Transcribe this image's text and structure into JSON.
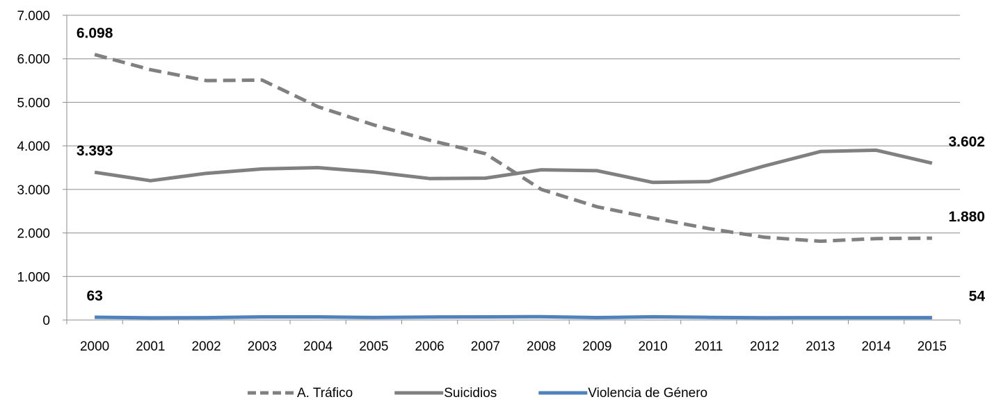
{
  "chart_data": {
    "type": "line",
    "categories": [
      "2000",
      "2001",
      "2002",
      "2003",
      "2004",
      "2005",
      "2006",
      "2007",
      "2008",
      "2009",
      "2010",
      "2011",
      "2012",
      "2013",
      "2014",
      "2015"
    ],
    "y_ticks": [
      "0",
      "1.000",
      "2.000",
      "3.000",
      "4.000",
      "5.000",
      "6.000",
      "7.000"
    ],
    "ylim": [
      0,
      7000
    ],
    "grid": true,
    "legend_position": "bottom",
    "series": [
      {
        "name": "A. Tráfico",
        "style": "dashed",
        "color": "#808080",
        "values": [
          6098,
          5750,
          5500,
          5510,
          4900,
          4480,
          4130,
          3820,
          3000,
          2600,
          2340,
          2100,
          1900,
          1810,
          1870,
          1880
        ]
      },
      {
        "name": "Suicidios",
        "style": "solid",
        "color": "#808080",
        "values": [
          3393,
          3200,
          3370,
          3470,
          3500,
          3400,
          3250,
          3260,
          3450,
          3430,
          3160,
          3180,
          3540,
          3870,
          3900,
          3602
        ]
      },
      {
        "name": "Violencia de Género",
        "style": "solid",
        "color": "#4f81bd",
        "values": [
          63,
          50,
          54,
          71,
          72,
          57,
          69,
          71,
          76,
          56,
          73,
          61,
          52,
          54,
          54,
          54
        ]
      }
    ],
    "data_labels": [
      {
        "series": 0,
        "index": 0,
        "text": "6.098",
        "pos": "above"
      },
      {
        "series": 1,
        "index": 0,
        "text": "3.393",
        "pos": "above"
      },
      {
        "series": 1,
        "index": 15,
        "text": "3.602",
        "pos": "above"
      },
      {
        "series": 0,
        "index": 15,
        "text": "1.880",
        "pos": "above"
      },
      {
        "series": 2,
        "index": 0,
        "text": "63",
        "pos": "above"
      },
      {
        "series": 2,
        "index": 15,
        "text": "54",
        "pos": "above"
      }
    ]
  }
}
